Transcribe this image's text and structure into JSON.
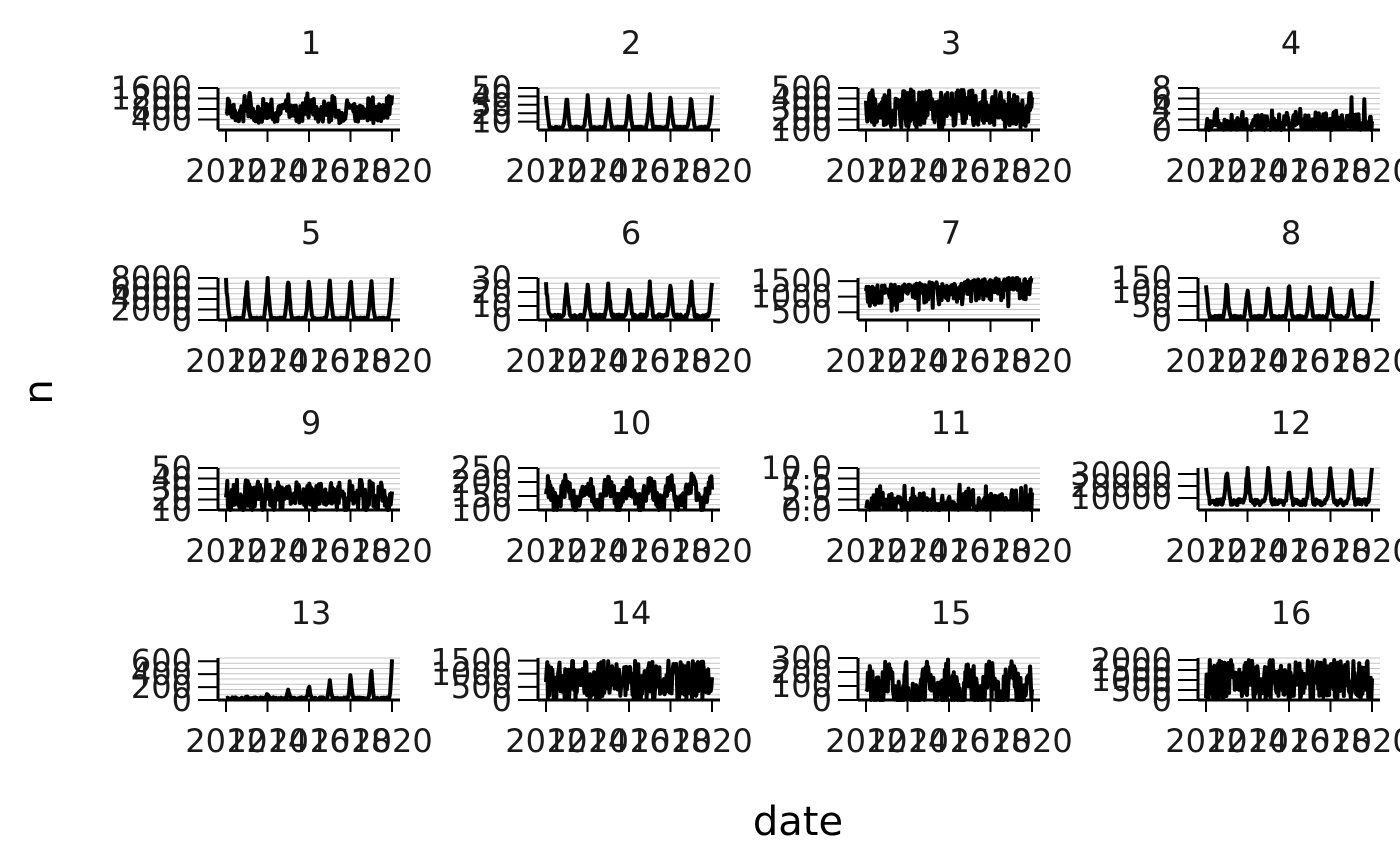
{
  "chart_data": {
    "type": "line",
    "layout": "facet-grid",
    "columns": 4,
    "xlabel": "date",
    "ylabel": "n",
    "x_ticks": [
      "2012",
      "2014",
      "2016",
      "2018",
      "2020"
    ],
    "x_range": [
      2012,
      2020
    ],
    "grid": true,
    "line_color": "#000000",
    "panels": [
      {
        "title": "1",
        "y_ticks": [
          "400",
          "800",
          "1200",
          "1600"
        ],
        "ylim": [
          0,
          1600
        ],
        "pattern": "dense",
        "base": 250,
        "amplitude": 650,
        "noise": 700,
        "peaks": 0,
        "trend": 0,
        "cycles": 8
      },
      {
        "title": "2",
        "y_ticks": [
          "10",
          "20",
          "30",
          "40",
          "50"
        ],
        "ylim": [
          0,
          50
        ],
        "pattern": "spike",
        "base": 1,
        "amplitude": 38,
        "noise": 3,
        "peaks": 0,
        "trend": 0,
        "cycles": 8
      },
      {
        "title": "3",
        "y_ticks": [
          "100",
          "200",
          "300",
          "400",
          "500"
        ],
        "ylim": [
          100,
          500
        ],
        "pattern": "dense",
        "base": 120,
        "amplitude": 20,
        "noise": 360,
        "peaks": 0,
        "trend": 0,
        "cycles": 8
      },
      {
        "title": "4",
        "y_ticks": [
          "0",
          "2",
          "4",
          "6",
          "8"
        ],
        "ylim": [
          0,
          8
        ],
        "pattern": "sparse",
        "base": 0,
        "amplitude": 0.5,
        "noise": 4.5,
        "peaks": 7.2,
        "trend": 0,
        "cycles": 8
      },
      {
        "title": "5",
        "y_ticks": [
          "0",
          "2000",
          "4000",
          "6000",
          "8000"
        ],
        "ylim": [
          0,
          8000
        ],
        "pattern": "spike",
        "base": 150,
        "amplitude": 7500,
        "noise": 300,
        "peaks": 0,
        "trend": 0,
        "cycles": 8
      },
      {
        "title": "6",
        "y_ticks": [
          "0",
          "10",
          "20",
          "30"
        ],
        "ylim": [
          0,
          30
        ],
        "pattern": "spike",
        "base": 1,
        "amplitude": 24,
        "noise": 3,
        "peaks": 0,
        "trend": 0,
        "cycles": 8
      },
      {
        "title": "7",
        "y_ticks": [
          "500",
          "1000",
          "1500"
        ],
        "ylim": [
          250,
          1600
        ],
        "pattern": "trend",
        "base": 250,
        "amplitude": 0,
        "noise": 1100,
        "peaks": 0,
        "trend": 300,
        "cycles": 8
      },
      {
        "title": "8",
        "y_ticks": [
          "0",
          "50",
          "100",
          "150"
        ],
        "ylim": [
          0,
          150
        ],
        "pattern": "spike",
        "base": 5,
        "amplitude": 115,
        "noise": 10,
        "peaks": 0,
        "trend": 0,
        "cycles": 8
      },
      {
        "title": "9",
        "y_ticks": [
          "10",
          "20",
          "30",
          "40",
          "50"
        ],
        "ylim": [
          10,
          50
        ],
        "pattern": "wave",
        "base": 18,
        "amplitude": 10,
        "noise": 12,
        "peaks": 0,
        "trend": 0,
        "cycles": 16
      },
      {
        "title": "10",
        "y_ticks": [
          "100",
          "150",
          "200",
          "250"
        ],
        "ylim": [
          100,
          250
        ],
        "pattern": "wave",
        "base": 120,
        "amplitude": 70,
        "noise": 40,
        "peaks": 0,
        "trend": 0,
        "cycles": 8
      },
      {
        "title": "11",
        "y_ticks": [
          "0.0",
          "2.5",
          "5.0",
          "7.5",
          "10.0"
        ],
        "ylim": [
          0,
          10
        ],
        "pattern": "sparse",
        "base": 0,
        "amplitude": 0.6,
        "noise": 6.5,
        "peaks": 9.5,
        "trend": 0,
        "cycles": 8
      },
      {
        "title": "12",
        "y_ticks": [
          "10000",
          "20000",
          "30000"
        ],
        "ylim": [
          0,
          35000
        ],
        "pattern": "spike",
        "base": 4000,
        "amplitude": 29000,
        "noise": 5000,
        "peaks": 0,
        "trend": 0,
        "cycles": 8
      },
      {
        "title": "13",
        "y_ticks": [
          "0",
          "200",
          "400",
          "600"
        ],
        "ylim": [
          0,
          650
        ],
        "pattern": "growing",
        "base": 10,
        "amplitude": 600,
        "noise": 30,
        "peaks": 0,
        "trend": 0,
        "cycles": 8
      },
      {
        "title": "14",
        "y_ticks": [
          "0",
          "500",
          "1000",
          "1500"
        ],
        "ylim": [
          0,
          1600
        ],
        "pattern": "dense",
        "base": 0,
        "amplitude": 0,
        "noise": 1500,
        "peaks": 0,
        "trend": 0,
        "cycles": 8
      },
      {
        "title": "15",
        "y_ticks": [
          "0",
          "100",
          "200",
          "300"
        ],
        "ylim": [
          0,
          300
        ],
        "pattern": "wave",
        "base": 10,
        "amplitude": 140,
        "noise": 150,
        "peaks": 0,
        "trend": 0,
        "cycles": 8
      },
      {
        "title": "16",
        "y_ticks": [
          "0",
          "500",
          "1000",
          "1500",
          "2000"
        ],
        "ylim": [
          0,
          2100
        ],
        "pattern": "dense",
        "base": 0,
        "amplitude": 0,
        "noise": 2000,
        "peaks": 0,
        "trend": 0,
        "cycles": 8
      }
    ]
  }
}
